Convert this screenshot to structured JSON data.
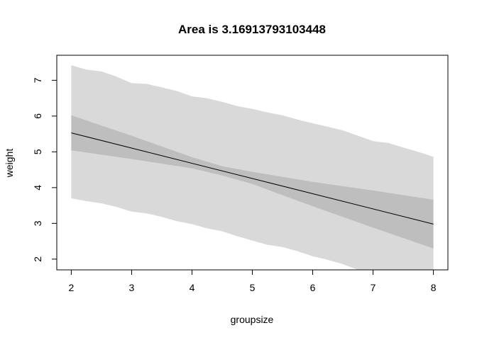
{
  "chart_data": {
    "type": "area",
    "title": "Area is  3.16913793103448",
    "xlabel": "groupsize",
    "ylabel": "weight",
    "xlim": [
      1.76,
      8.24
    ],
    "ylim": [
      1.7,
      7.7
    ],
    "xticks": [
      "2",
      "3",
      "4",
      "5",
      "6",
      "7",
      "8"
    ],
    "yticks": [
      "2",
      "3",
      "4",
      "5",
      "6",
      "7"
    ],
    "grid": false,
    "series": [
      {
        "kind": "band",
        "color": "#d9d9d9",
        "x": [
          2,
          2.25,
          2.5,
          2.75,
          3,
          3.25,
          3.5,
          3.75,
          4,
          4.25,
          4.5,
          4.75,
          5,
          5.25,
          5.5,
          5.75,
          6,
          6.25,
          6.5,
          6.75,
          7,
          7.25,
          7.5,
          7.75,
          8
        ],
        "upper": [
          7.42,
          7.3,
          7.25,
          7.1,
          6.92,
          6.9,
          6.8,
          6.7,
          6.55,
          6.5,
          6.4,
          6.28,
          6.2,
          6.1,
          6.02,
          5.9,
          5.8,
          5.7,
          5.6,
          5.45,
          5.3,
          5.25,
          5.12,
          5.0,
          4.86
        ],
        "lower": [
          3.7,
          3.62,
          3.56,
          3.46,
          3.33,
          3.28,
          3.18,
          3.06,
          2.98,
          2.86,
          2.78,
          2.64,
          2.52,
          2.4,
          2.34,
          2.22,
          2.08,
          1.98,
          1.86,
          1.7,
          1.7,
          1.7,
          1.7,
          1.7,
          1.7
        ]
      },
      {
        "kind": "band",
        "color": "#bebebe",
        "x": [
          2,
          3,
          4,
          4.5,
          5,
          6,
          7,
          8
        ],
        "upper": [
          6.02,
          5.45,
          4.85,
          4.6,
          4.44,
          4.16,
          3.92,
          3.66
        ],
        "lower": [
          5.04,
          4.8,
          4.54,
          4.34,
          4.1,
          3.48,
          2.88,
          2.3
        ]
      },
      {
        "kind": "line",
        "color": "#000000",
        "x": [
          2,
          8
        ],
        "y": [
          5.53,
          2.98
        ]
      }
    ]
  }
}
